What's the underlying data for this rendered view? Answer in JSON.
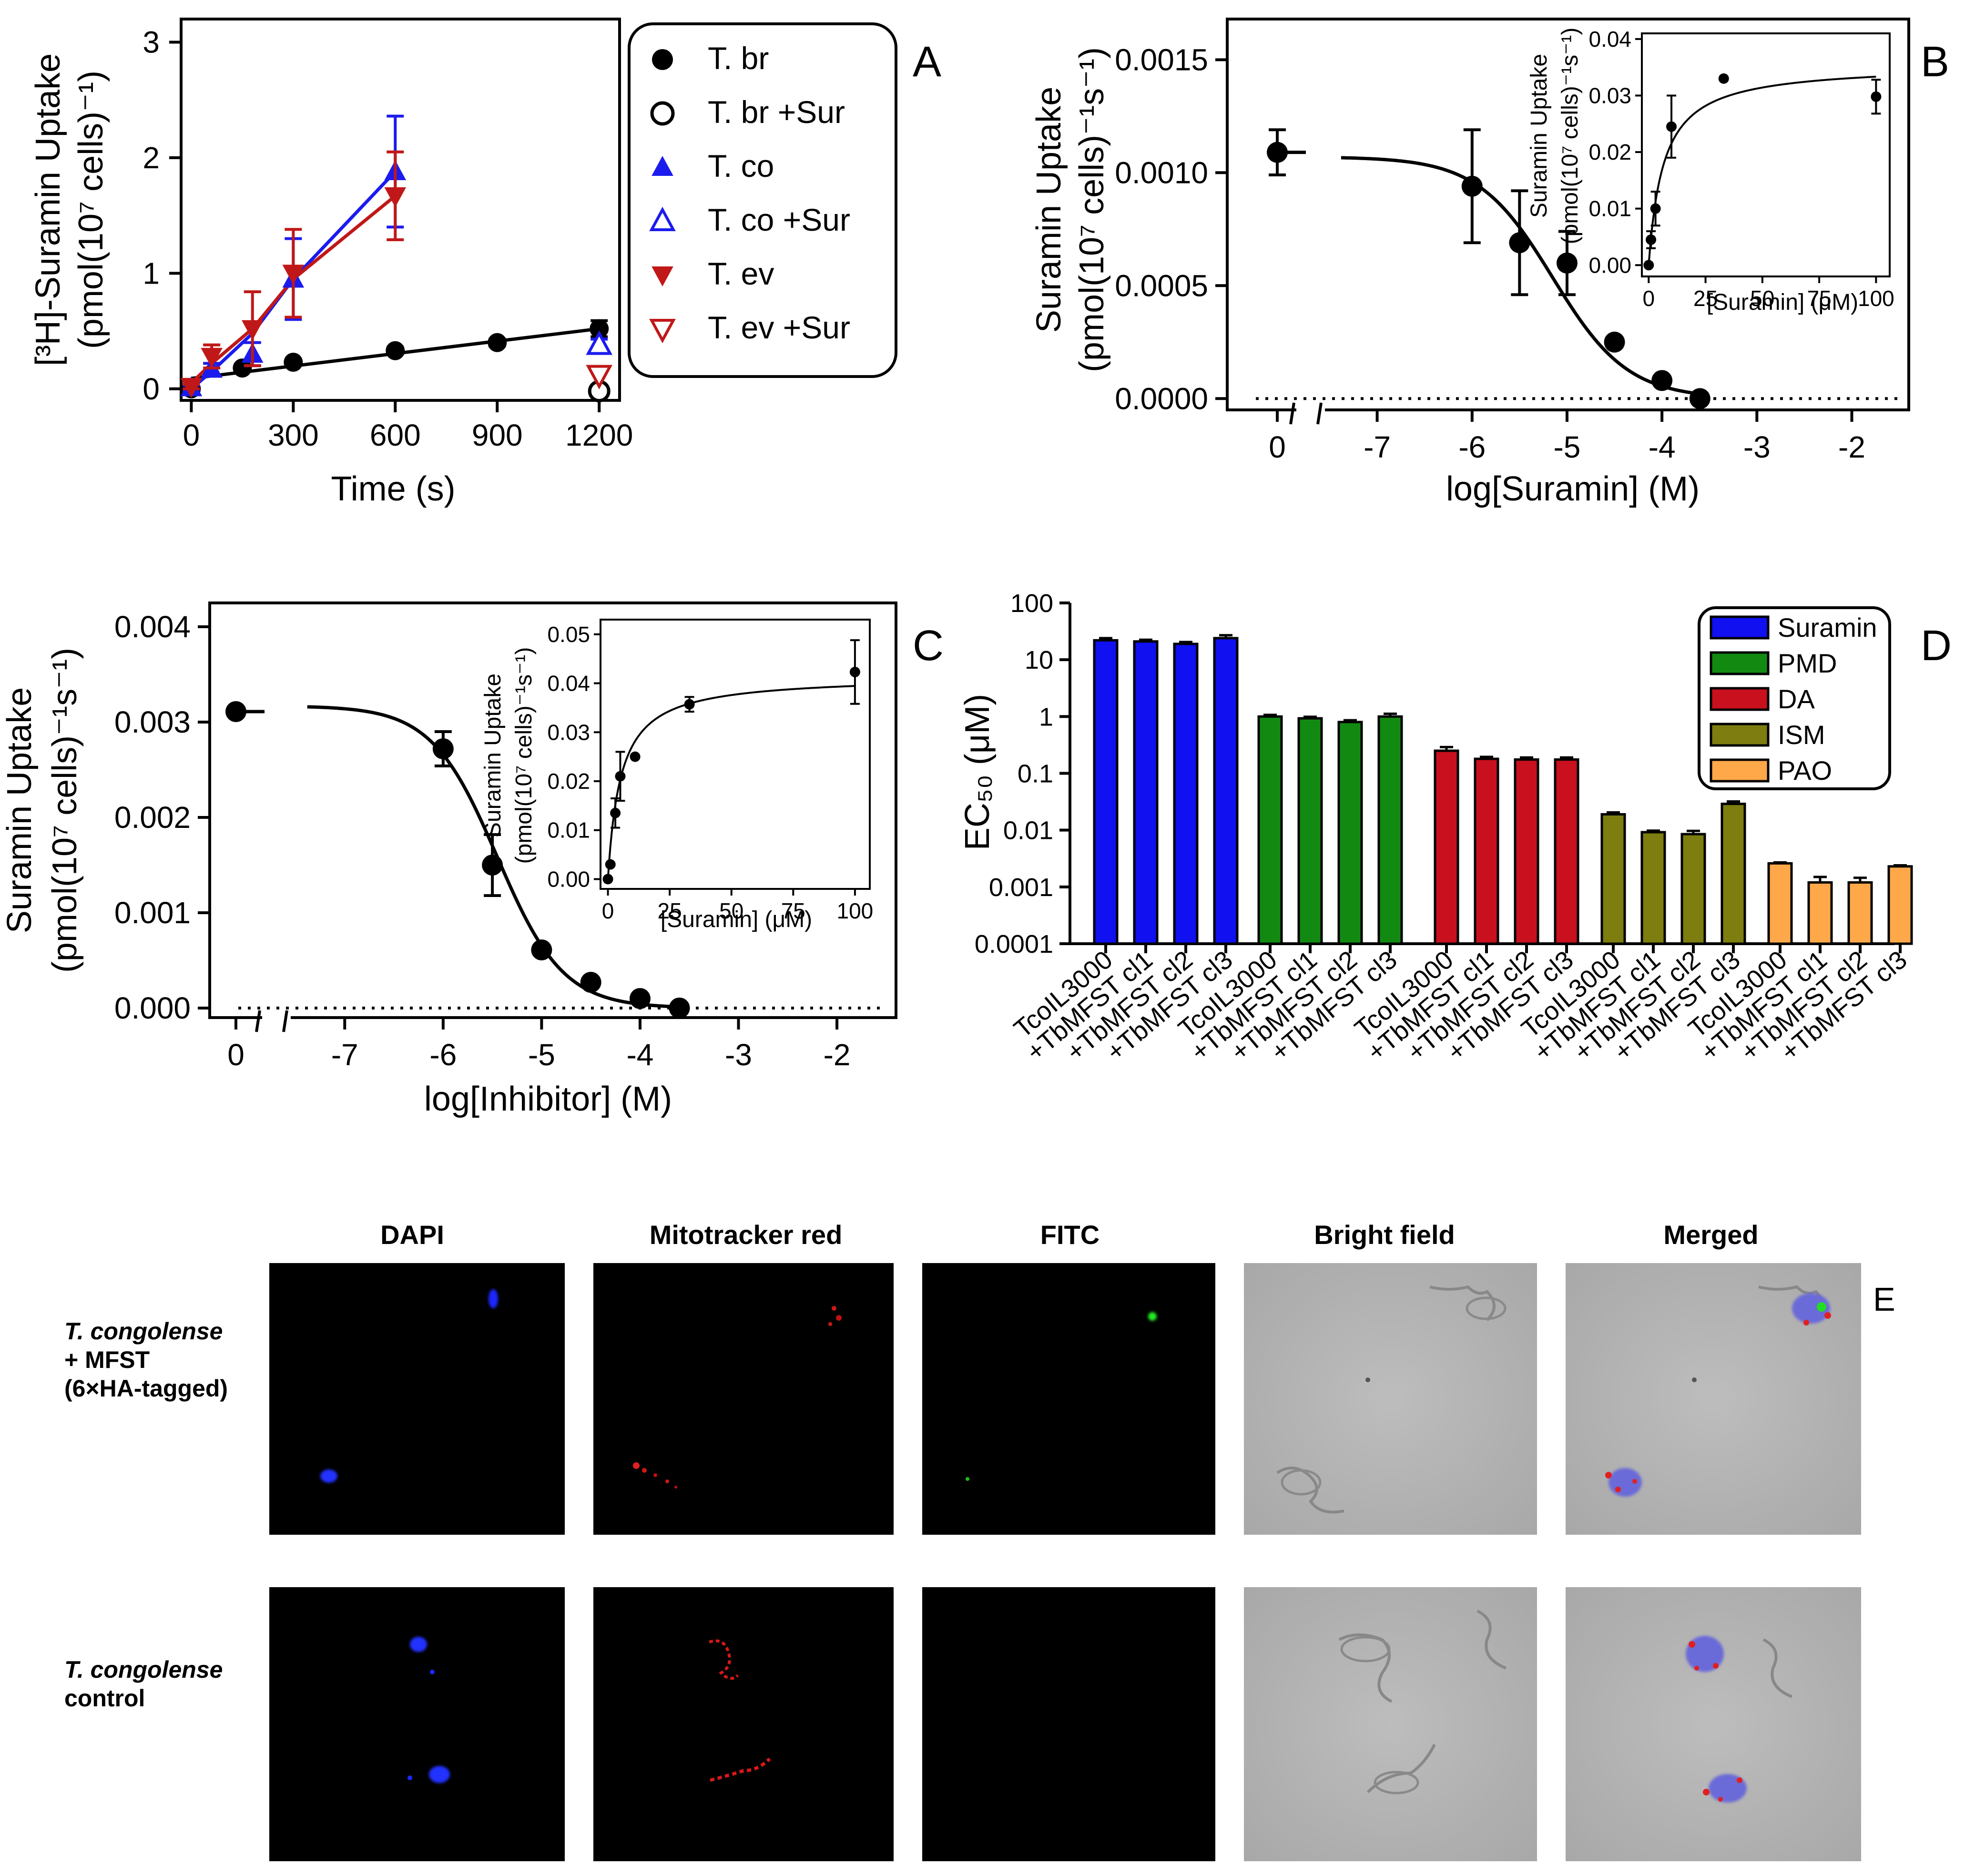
{
  "colors": {
    "tbr": "#000000",
    "tco": "#1b1bee",
    "tev": "#c01818",
    "suramin": "#1010f0",
    "pmd": "#128a12",
    "da": "#c8101e",
    "ism": "#7d7d10",
    "pao": "#ffa84a"
  },
  "panels": {
    "A": {
      "letter": "A",
      "ylabel": "[³H]-Suramin Uptake",
      "ylabel2": "(pmol(10⁷ cells)⁻¹)",
      "xlabel": "Time (s)",
      "xticks": [
        0,
        300,
        600,
        900,
        1200
      ],
      "yticks": [
        0,
        1,
        2,
        3
      ],
      "xlim": [
        -30,
        1260
      ],
      "ylim": [
        -0.1,
        3.2
      ],
      "legend": [
        {
          "label": "T. br",
          "marker": "circle",
          "filled": true,
          "color": "#000000"
        },
        {
          "label": "T. br +Sur",
          "marker": "circle",
          "filled": false,
          "color": "#000000"
        },
        {
          "label": "T. co",
          "marker": "tri-up",
          "filled": true,
          "color": "#1b1bee"
        },
        {
          "label": "T. co +Sur",
          "marker": "tri-up",
          "filled": false,
          "color": "#1b1bee"
        },
        {
          "label": "T. ev",
          "marker": "tri-down",
          "filled": true,
          "color": "#c01818"
        },
        {
          "label": "T. ev +Sur",
          "marker": "tri-down",
          "filled": false,
          "color": "#c01818"
        }
      ],
      "series": [
        {
          "name": "T. br",
          "marker": "circle",
          "filled": true,
          "color": "#000000",
          "points": [
            [
              0,
              0
            ],
            [
              150,
              0.18
            ],
            [
              300,
              0.23
            ],
            [
              600,
              0.33
            ],
            [
              900,
              0.4
            ],
            [
              1200,
              0.52
            ]
          ],
          "err": [
            0,
            0.02,
            0.02,
            0.03,
            0.03,
            0.07
          ],
          "fit": [
            [
              0,
              0.09
            ],
            [
              1200,
              0.52
            ]
          ]
        },
        {
          "name": "T. co",
          "marker": "tri-up",
          "filled": true,
          "color": "#1b1bee",
          "points": [
            [
              0,
              0.01
            ],
            [
              60,
              0.17
            ],
            [
              180,
              0.3
            ],
            [
              300,
              0.95
            ],
            [
              600,
              1.88
            ]
          ],
          "err": [
            0.02,
            0.05,
            0.1,
            0.35,
            0.48
          ],
          "fit": [
            [
              0,
              0.0
            ],
            [
              60,
              0.15
            ],
            [
              180,
              0.48
            ],
            [
              300,
              0.95
            ],
            [
              600,
              1.88
            ]
          ]
        },
        {
          "name": "T. ev",
          "marker": "tri-down",
          "filled": true,
          "color": "#c01818",
          "points": [
            [
              0,
              0.02
            ],
            [
              60,
              0.28
            ],
            [
              180,
              0.52
            ],
            [
              300,
              1.0
            ],
            [
              600,
              1.67
            ]
          ],
          "err": [
            0.02,
            0.1,
            0.32,
            0.38,
            0.38
          ],
          "fit": [
            [
              0,
              0.05
            ],
            [
              60,
              0.22
            ],
            [
              180,
              0.52
            ],
            [
              300,
              0.95
            ],
            [
              600,
              1.67
            ]
          ]
        },
        {
          "name": "T. br +Sur",
          "marker": "circle",
          "filled": false,
          "color": "#000000",
          "points": [
            [
              1200,
              -0.02
            ]
          ],
          "err": [
            0
          ]
        },
        {
          "name": "T. co +Sur",
          "marker": "tri-up",
          "filled": false,
          "color": "#1b1bee",
          "points": [
            [
              1200,
              0.38
            ]
          ],
          "err": [
            0.05
          ]
        },
        {
          "name": "T. ev +Sur",
          "marker": "tri-down",
          "filled": false,
          "color": "#c01818",
          "points": [
            [
              1200,
              0.12
            ]
          ],
          "err": [
            0
          ]
        }
      ]
    },
    "B": {
      "letter": "B",
      "ylabel": "Suramin Uptake",
      "ylabel2": "(pmol(10⁷ cells)⁻¹s⁻¹)",
      "xlabel": "log[Suramin] (M)",
      "yticks": [
        "0.0000",
        "0.0005",
        "0.0010",
        "0.0015"
      ],
      "ytick_values": [
        0,
        0.0005,
        0.001,
        0.0015
      ],
      "xticks": [
        "0",
        "-7",
        "-6",
        "-5",
        "-4",
        "-3",
        "-2"
      ],
      "ylim": [
        -5e-05,
        0.00168
      ],
      "xlim": [
        -7.5,
        -1.4
      ],
      "zero_point": {
        "value": 0.00109,
        "err": 0.0001
      },
      "points": [
        [
          -6,
          0.00094
        ],
        [
          -5.5,
          0.00069
        ],
        [
          -5,
          0.0006
        ],
        [
          -4.5,
          0.00025
        ],
        [
          -4,
          8e-05
        ],
        [
          -3.6,
          0
        ]
      ],
      "err": [
        0.00025,
        0.00023,
        0.00014,
        0,
        0,
        0
      ],
      "fit": {
        "top": 0.00107,
        "bottom": 0,
        "logic50": -5.15,
        "hill": -1.1
      },
      "inset": {
        "xlabel": "[Suramin] (μM)",
        "ylabel": "Suramin Uptake",
        "ylabel2": "(pmol(10⁷ cells)⁻¹s⁻¹)",
        "xticks": [
          0,
          25,
          50,
          75,
          100
        ],
        "yticks": [
          "0.00",
          "0.01",
          "0.02",
          "0.03",
          "0.04"
        ],
        "ytick_values": [
          0,
          0.01,
          0.02,
          0.03,
          0.04
        ],
        "xlim": [
          -3,
          106
        ],
        "ylim": [
          -0.002,
          0.041
        ],
        "points": [
          [
            0,
            0
          ],
          [
            1,
            0.0045
          ],
          [
            3,
            0.01
          ],
          [
            10,
            0.0245
          ],
          [
            33,
            0.033
          ],
          [
            100,
            0.0298
          ]
        ],
        "err": [
          0,
          0.0015,
          0.003,
          0.0055,
          0,
          0.003
        ],
        "vmax": 0.0355,
        "km": 6.5
      }
    },
    "C": {
      "letter": "C",
      "ylabel": "Suramin Uptake",
      "ylabel2": "(pmol(10⁷ cells)⁻¹s⁻¹)",
      "xlabel": "log[Inhibitor] (M)",
      "yticks": [
        "0.000",
        "0.001",
        "0.002",
        "0.003",
        "0.004"
      ],
      "ytick_values": [
        0,
        0.001,
        0.002,
        0.003,
        0.004
      ],
      "xticks": [
        "0",
        "-7",
        "-6",
        "-5",
        "-4",
        "-3",
        "-2"
      ],
      "ylim": [
        -0.0001,
        0.00425
      ],
      "xlim": [
        -7.5,
        -1.4
      ],
      "zero_point": {
        "value": 0.00311,
        "err": 0
      },
      "points": [
        [
          -6,
          0.00272
        ],
        [
          -5.5,
          0.0015
        ],
        [
          -5,
          0.00061
        ],
        [
          -4.5,
          0.00027
        ],
        [
          -4,
          0.0001
        ],
        [
          -3.6,
          0
        ]
      ],
      "err": [
        0.00018,
        0.00032,
        0,
        0,
        0,
        0
      ],
      "fit": {
        "top": 0.00317,
        "bottom": 0,
        "logic50": -5.45,
        "hill": -1.3
      },
      "inset": {
        "xlabel": "[Suramin] (μM)",
        "ylabel": "Suramin Uptake",
        "ylabel2": "(pmol(10⁷ cells)⁻¹s⁻¹)",
        "xticks": [
          0,
          25,
          50,
          75,
          100
        ],
        "yticks": [
          "0.00",
          "0.01",
          "0.02",
          "0.03",
          "0.04",
          "0.05"
        ],
        "ytick_values": [
          0,
          0.01,
          0.02,
          0.03,
          0.04,
          0.05
        ],
        "xlim": [
          -3,
          106
        ],
        "ylim": [
          -0.002,
          0.053
        ],
        "points": [
          [
            0,
            0
          ],
          [
            1,
            0.003
          ],
          [
            3,
            0.0135
          ],
          [
            5,
            0.021
          ],
          [
            11,
            0.025
          ],
          [
            33,
            0.0357
          ],
          [
            100,
            0.0423
          ]
        ],
        "err": [
          0,
          0,
          0.003,
          0.005,
          0,
          0.0015,
          0.0065
        ],
        "vmax": 0.0415,
        "km": 5.2
      }
    },
    "D": {
      "letter": "D",
      "ylabel": "EC₅₀ (μM)",
      "yticks": [
        "0.0001",
        "0.001",
        "0.01",
        "0.1",
        "1",
        "10",
        "100"
      ],
      "ytick_values": [
        0.0001,
        0.001,
        0.01,
        0.1,
        1,
        10,
        100
      ],
      "groups": [
        {
          "label": "Suramin",
          "color": "#1010f0",
          "values": [
            22,
            21,
            19,
            24
          ],
          "err": [
            2,
            1.5,
            1.5,
            3
          ]
        },
        {
          "label": "PMD",
          "color": "#128a12",
          "values": [
            1.0,
            0.93,
            0.8,
            1.0
          ],
          "err": [
            0.07,
            0.06,
            0.06,
            0.12
          ]
        },
        {
          "label": "DA",
          "color": "#c8101e",
          "values": [
            0.25,
            0.18,
            0.175,
            0.175
          ],
          "err": [
            0.04,
            0.015,
            0.015,
            0.015
          ]
        },
        {
          "label": "ISM",
          "color": "#7d7d10",
          "values": [
            0.019,
            0.0092,
            0.0085,
            0.029
          ],
          "err": [
            0.0015,
            0.0006,
            0.0012,
            0.003
          ]
        },
        {
          "label": "PAO",
          "color": "#ffa84a",
          "values": [
            0.0026,
            0.0012,
            0.0012,
            0.0023
          ],
          "err": [
            0.0001,
            0.0003,
            0.00025,
            0.0001
          ]
        }
      ],
      "categories": [
        "TcoIL3000",
        "+TbMFST cl1",
        "+TbMFST cl2",
        "+TbMFST cl3"
      ]
    },
    "E": {
      "letter": "E",
      "columns": [
        "DAPI",
        "Mitotracker red",
        "FITC",
        "Bright field",
        "Merged"
      ],
      "rows": [
        {
          "italic": "T. congolense",
          "lines": [
            "+ MFST",
            "(6×HA-tagged)"
          ]
        },
        {
          "italic": "T. congolense",
          "lines": [
            "control"
          ]
        }
      ]
    }
  }
}
